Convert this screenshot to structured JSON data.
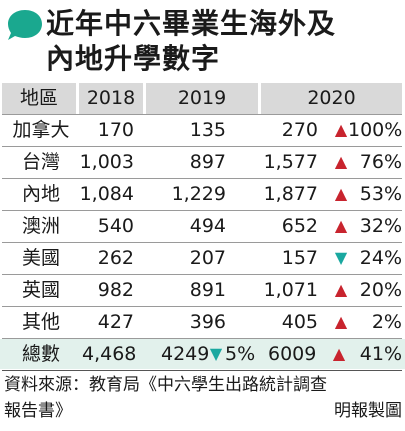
{
  "title": {
    "line1": "近年中六畢業生海外及",
    "line2": "內地升學數字"
  },
  "colors": {
    "accent_bubble": "#1aa88f",
    "header_bg": "#d9d9d9",
    "total_bg": "#e2f1ec",
    "increase": "#c8242e",
    "decrease": "#1aa8a0"
  },
  "chart_data": {
    "type": "table",
    "columns": [
      "地區",
      "2018",
      "2019",
      "2020"
    ],
    "rows": [
      {
        "region": "加拿大",
        "y2018": "170",
        "y2019": "135",
        "y2020": "270",
        "trend": "up",
        "change": "100%"
      },
      {
        "region": "台灣",
        "y2018": "1,003",
        "y2019": "897",
        "y2020": "1,577",
        "trend": "up",
        "change": "76%"
      },
      {
        "region": "內地",
        "y2018": "1,084",
        "y2019": "1,229",
        "y2020": "1,877",
        "trend": "up",
        "change": "53%"
      },
      {
        "region": "澳洲",
        "y2018": "540",
        "y2019": "494",
        "y2020": "652",
        "trend": "up",
        "change": "32%"
      },
      {
        "region": "美國",
        "y2018": "262",
        "y2019": "207",
        "y2020": "157",
        "trend": "down",
        "change": "24%"
      },
      {
        "region": "英國",
        "y2018": "982",
        "y2019": "891",
        "y2020": "1,071",
        "trend": "up",
        "change": "20%"
      },
      {
        "region": "其他",
        "y2018": "427",
        "y2019": "396",
        "y2020": "405",
        "trend": "up",
        "change": "2%"
      }
    ],
    "total": {
      "region": "總數",
      "y2018": "4,468",
      "y2019": "4249",
      "y2019_trend": "down",
      "y2019_change": "5%",
      "y2020": "6009",
      "y2020_trend": "up",
      "y2020_change": "41%"
    }
  },
  "source": {
    "line1": "資料來源：教育局《中六學生出路統計調查",
    "line2_left": "報告書》",
    "credit": "明報製圖"
  }
}
